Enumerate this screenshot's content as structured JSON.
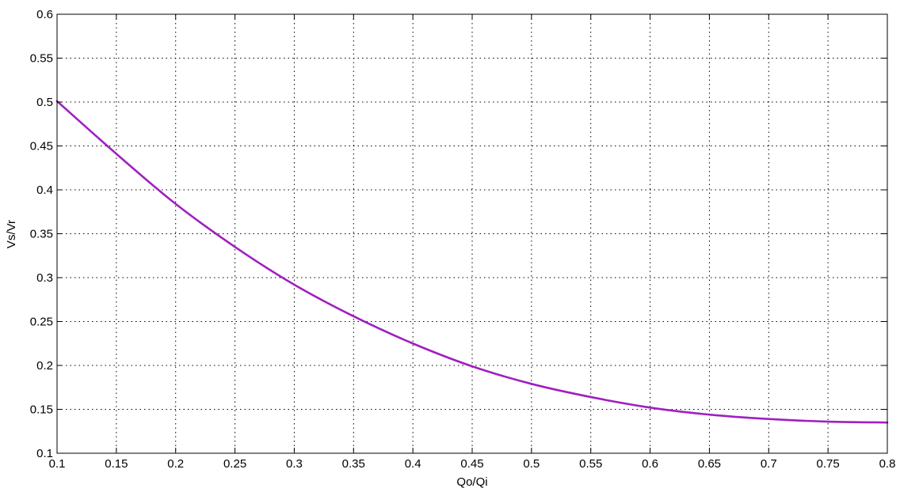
{
  "chart_data": {
    "type": "line",
    "title": "",
    "xlabel": "Qo/Qi",
    "ylabel": "Vs/Vr",
    "xlim": [
      0.1,
      0.8
    ],
    "ylim": [
      0.1,
      0.6
    ],
    "x_ticks": [
      "0.1",
      "0.15",
      "0.2",
      "0.25",
      "0.3",
      "0.35",
      "0.4",
      "0.45",
      "0.5",
      "0.55",
      "0.6",
      "0.65",
      "0.7",
      "0.75",
      "0.8"
    ],
    "y_ticks": [
      "0.1",
      "0.15",
      "0.2",
      "0.25",
      "0.3",
      "0.35",
      "0.4",
      "0.45",
      "0.5",
      "0.55",
      "0.6"
    ],
    "grid": true,
    "grid_style": "dotted",
    "line_color": "#a020c0",
    "series": [
      {
        "x": [
          0.1,
          0.15,
          0.2,
          0.25,
          0.3,
          0.35,
          0.4,
          0.45,
          0.5,
          0.55,
          0.6,
          0.65,
          0.7,
          0.75,
          0.8
        ],
        "values": [
          0.501,
          0.441,
          0.384,
          0.335,
          0.292,
          0.256,
          0.225,
          0.199,
          0.179,
          0.164,
          0.152,
          0.144,
          0.139,
          0.136,
          0.135
        ]
      }
    ]
  }
}
